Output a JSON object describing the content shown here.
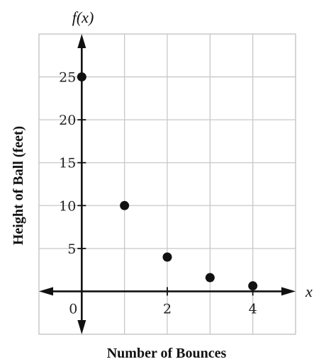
{
  "chart_data": {
    "type": "scatter",
    "title": "",
    "xlabel": "Number of Bounces",
    "ylabel": "Height of Ball (feet)",
    "x_axis_name": "x",
    "y_axis_name": "f(x)",
    "x": [
      0,
      1,
      2,
      3,
      4
    ],
    "values": [
      25,
      10,
      4,
      1.6,
      0.64
    ],
    "xlim": [
      -1,
      5
    ],
    "ylim": [
      -5,
      30
    ],
    "x_tick_labels": [
      {
        "value": 0,
        "label": "0"
      },
      {
        "value": 2,
        "label": "2"
      },
      {
        "value": 4,
        "label": "4"
      }
    ],
    "y_tick_labels": [
      {
        "value": 5,
        "label": "5"
      },
      {
        "value": 10,
        "label": "10"
      },
      {
        "value": 15,
        "label": "15"
      },
      {
        "value": 20,
        "label": "20"
      },
      {
        "value": 25,
        "label": "25"
      }
    ],
    "grid": true,
    "legend": "none",
    "point_color": "#111111",
    "axis_color": "#111111",
    "grid_color": "#c8c8c8"
  }
}
